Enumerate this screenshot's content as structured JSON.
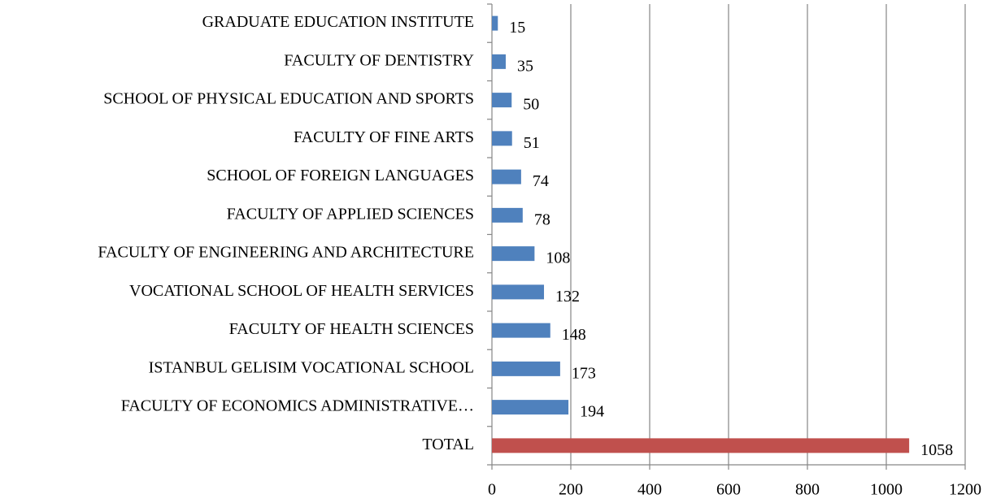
{
  "chart_data": {
    "type": "bar",
    "orientation": "horizontal",
    "categories": [
      "GRADUATE EDUCATION INSTITUTE",
      "FACULTY OF DENTISTRY",
      "SCHOOL OF PHYSICAL EDUCATION AND SPORTS",
      "FACULTY OF FINE ARTS",
      "SCHOOL OF FOREIGN LANGUAGES",
      "FACULTY OF APPLIED SCIENCES",
      "FACULTY OF ENGINEERING AND ARCHITECTURE",
      "VOCATIONAL SCHOOL OF HEALTH SERVICES",
      "FACULTY OF HEALTH SCIENCES",
      "ISTANBUL GELISIM VOCATIONAL SCHOOL",
      "FACULTY OF ECONOMICS ADMINISTRATIVE…",
      "TOTAL"
    ],
    "values": [
      15,
      35,
      50,
      51,
      74,
      78,
      108,
      132,
      148,
      173,
      194,
      1058
    ],
    "colors": [
      "#4f81bd",
      "#4f81bd",
      "#4f81bd",
      "#4f81bd",
      "#4f81bd",
      "#4f81bd",
      "#4f81bd",
      "#4f81bd",
      "#4f81bd",
      "#4f81bd",
      "#4f81bd",
      "#c0504d"
    ],
    "xlim": [
      0,
      1200
    ],
    "xticks": [
      0,
      200,
      400,
      600,
      800,
      1000,
      1200
    ],
    "grid": true
  }
}
